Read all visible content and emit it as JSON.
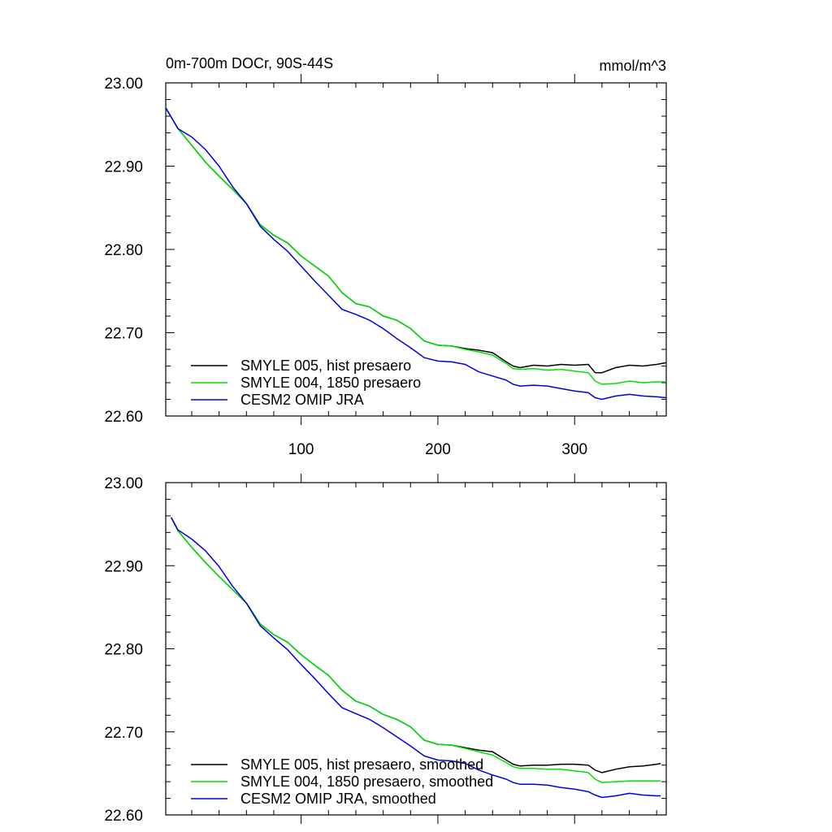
{
  "header": {
    "title": "0m-700m DOCr, 90S-44S",
    "units": "mmol/m^3"
  },
  "chart_data": [
    {
      "type": "line",
      "panel": "top",
      "xlim": [
        1,
        367
      ],
      "ylim": [
        22.6,
        23.0
      ],
      "x_ticks": [
        100,
        200,
        300
      ],
      "x_tick_labels": [
        "100",
        "200",
        "300"
      ],
      "y_ticks": [
        22.6,
        22.7,
        22.8,
        22.9,
        23.0
      ],
      "y_tick_labels": [
        "22.60",
        "22.70",
        "22.80",
        "22.90",
        "23.00"
      ],
      "grid": false,
      "legend_position": "bottom-left",
      "series": [
        {
          "name": "SMYLE 005, hist presaero",
          "color": "#000000",
          "x": [
            1,
            10,
            20,
            30,
            40,
            50,
            60,
            70,
            80,
            90,
            100,
            110,
            120,
            130,
            140,
            150,
            160,
            170,
            180,
            190,
            200,
            210,
            220,
            230,
            240,
            250,
            255,
            260,
            270,
            280,
            290,
            300,
            310,
            315,
            320,
            330,
            340,
            350,
            360,
            367
          ],
          "y": [
            22.97,
            22.945,
            22.925,
            22.905,
            22.888,
            22.872,
            22.855,
            22.83,
            22.817,
            22.808,
            22.792,
            22.78,
            22.768,
            22.748,
            22.735,
            22.731,
            22.72,
            22.715,
            22.705,
            22.69,
            22.685,
            22.684,
            22.681,
            22.679,
            22.676,
            22.665,
            22.66,
            22.658,
            22.661,
            22.66,
            22.662,
            22.661,
            22.662,
            22.652,
            22.652,
            22.658,
            22.661,
            22.66,
            22.662,
            22.664
          ]
        },
        {
          "name": "SMYLE 004, 1850 presaero",
          "color": "#00e000",
          "x": [
            1,
            10,
            20,
            30,
            40,
            50,
            60,
            70,
            80,
            90,
            100,
            110,
            120,
            130,
            140,
            150,
            160,
            170,
            180,
            190,
            200,
            210,
            220,
            230,
            240,
            250,
            255,
            260,
            270,
            280,
            290,
            300,
            310,
            315,
            320,
            330,
            340,
            350,
            360,
            367
          ],
          "y": [
            22.97,
            22.945,
            22.925,
            22.905,
            22.888,
            22.872,
            22.855,
            22.83,
            22.817,
            22.808,
            22.792,
            22.78,
            22.768,
            22.748,
            22.735,
            22.731,
            22.72,
            22.715,
            22.705,
            22.69,
            22.685,
            22.684,
            22.68,
            22.677,
            22.673,
            22.663,
            22.657,
            22.656,
            22.657,
            22.655,
            22.656,
            22.654,
            22.652,
            22.642,
            22.638,
            22.639,
            22.642,
            22.64,
            22.641,
            22.641
          ]
        },
        {
          "name": "CESM2 OMIP JRA",
          "color": "#0000dd",
          "x": [
            1,
            10,
            20,
            30,
            40,
            50,
            60,
            70,
            80,
            90,
            100,
            110,
            120,
            130,
            140,
            150,
            160,
            170,
            180,
            190,
            200,
            210,
            220,
            230,
            240,
            250,
            255,
            260,
            270,
            280,
            290,
            300,
            310,
            315,
            320,
            330,
            340,
            350,
            360,
            367
          ],
          "y": [
            22.97,
            22.945,
            22.935,
            22.92,
            22.9,
            22.875,
            22.855,
            22.828,
            22.812,
            22.798,
            22.78,
            22.762,
            22.745,
            22.728,
            22.722,
            22.715,
            22.705,
            22.693,
            22.682,
            22.67,
            22.666,
            22.665,
            22.662,
            22.653,
            22.648,
            22.643,
            22.638,
            22.636,
            22.637,
            22.636,
            22.633,
            22.63,
            22.628,
            22.622,
            22.62,
            22.624,
            22.626,
            22.624,
            22.623,
            22.622
          ]
        }
      ]
    },
    {
      "type": "line",
      "panel": "bottom",
      "xlim": [
        1,
        367
      ],
      "ylim": [
        22.6,
        23.0
      ],
      "x_ticks": [
        100,
        200,
        300
      ],
      "y_ticks": [
        22.6,
        22.7,
        22.8,
        22.9,
        23.0
      ],
      "y_tick_labels": [
        "22.60",
        "22.70",
        "22.80",
        "22.90",
        "23.00"
      ],
      "grid": false,
      "legend_position": "bottom-left",
      "series": [
        {
          "name": "SMYLE 005, hist presaero, smoothed",
          "color": "#000000",
          "x": [
            5,
            10,
            20,
            30,
            40,
            50,
            60,
            70,
            80,
            90,
            100,
            110,
            120,
            130,
            140,
            150,
            160,
            170,
            180,
            190,
            200,
            210,
            220,
            230,
            240,
            250,
            255,
            260,
            270,
            280,
            290,
            300,
            310,
            315,
            320,
            330,
            340,
            350,
            360,
            363
          ],
          "y": [
            22.958,
            22.942,
            22.922,
            22.904,
            22.887,
            22.871,
            22.855,
            22.83,
            22.817,
            22.808,
            22.793,
            22.78,
            22.768,
            22.75,
            22.737,
            22.731,
            22.721,
            22.715,
            22.706,
            22.69,
            22.685,
            22.684,
            22.681,
            22.678,
            22.676,
            22.666,
            22.661,
            22.659,
            22.66,
            22.66,
            22.661,
            22.661,
            22.66,
            22.654,
            22.651,
            22.655,
            22.658,
            22.659,
            22.661,
            22.662
          ]
        },
        {
          "name": "SMYLE 004, 1850 presaero, smoothed",
          "color": "#00e000",
          "x": [
            5,
            10,
            20,
            30,
            40,
            50,
            60,
            70,
            80,
            90,
            100,
            110,
            120,
            130,
            140,
            150,
            160,
            170,
            180,
            190,
            200,
            210,
            220,
            230,
            240,
            250,
            255,
            260,
            270,
            280,
            290,
            300,
            310,
            315,
            320,
            330,
            340,
            350,
            360,
            363
          ],
          "y": [
            22.958,
            22.942,
            22.922,
            22.904,
            22.887,
            22.871,
            22.855,
            22.83,
            22.817,
            22.808,
            22.793,
            22.78,
            22.768,
            22.75,
            22.737,
            22.731,
            22.721,
            22.715,
            22.706,
            22.69,
            22.685,
            22.684,
            22.68,
            22.676,
            22.672,
            22.663,
            22.658,
            22.656,
            22.656,
            22.655,
            22.655,
            22.653,
            22.651,
            22.643,
            22.639,
            22.64,
            22.641,
            22.641,
            22.641,
            22.641
          ]
        },
        {
          "name": "CESM2 OMIP JRA, smoothed",
          "color": "#0000dd",
          "x": [
            5,
            10,
            20,
            30,
            40,
            50,
            60,
            70,
            80,
            90,
            100,
            110,
            120,
            130,
            140,
            150,
            160,
            170,
            180,
            190,
            200,
            210,
            220,
            230,
            240,
            250,
            255,
            260,
            270,
            280,
            290,
            300,
            310,
            315,
            320,
            330,
            340,
            350,
            360,
            363
          ],
          "y": [
            22.958,
            22.943,
            22.932,
            22.918,
            22.899,
            22.875,
            22.855,
            22.828,
            22.813,
            22.799,
            22.781,
            22.764,
            22.746,
            22.729,
            22.722,
            22.715,
            22.705,
            22.694,
            22.683,
            22.671,
            22.666,
            22.665,
            22.662,
            22.654,
            22.648,
            22.643,
            22.639,
            22.637,
            22.637,
            22.636,
            22.633,
            22.631,
            22.628,
            22.624,
            22.621,
            22.623,
            22.626,
            22.624,
            22.623,
            22.623
          ]
        }
      ]
    }
  ]
}
